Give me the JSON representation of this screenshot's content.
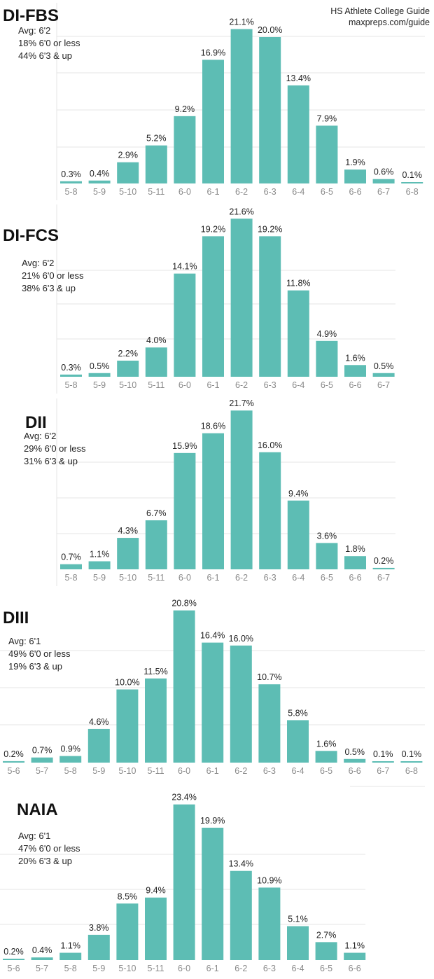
{
  "source": {
    "line1": "HS Athlete College Guide",
    "line2": "maxpreps.com/guide"
  },
  "colors": {
    "bar": "#5dbdb4",
    "grid": "#e4e4e4",
    "tick": "#8a8a8a"
  },
  "chart_data": [
    {
      "type": "bar",
      "title": "DI-FBS",
      "subtitle": [
        "Avg: 6'2",
        "18% 6'0 or less",
        "44% 6'3 & up"
      ],
      "categories": [
        "5-8",
        "5-9",
        "5-10",
        "5-11",
        "6-0",
        "6-1",
        "6-2",
        "6-3",
        "6-4",
        "6-5",
        "6-6",
        "6-7",
        "6-8"
      ],
      "values": [
        0.3,
        0.4,
        2.9,
        5.2,
        9.2,
        16.9,
        21.1,
        20.0,
        13.4,
        7.9,
        1.9,
        0.6,
        0.1
      ],
      "labels": [
        "0.3%",
        "0.4%",
        "2.9%",
        "5.2%",
        "9.2%",
        "16.9%",
        "21.1%",
        "20.0%",
        "13.4%",
        "7.9%",
        "1.9%",
        "0.6%",
        "0.1%"
      ],
      "xlabel": "",
      "ylabel": "",
      "grid": true,
      "legend": "none"
    },
    {
      "type": "bar",
      "title": "DI-FCS",
      "subtitle": [
        "Avg: 6'2",
        "21% 6'0 or less",
        "38% 6'3 & up"
      ],
      "categories": [
        "5-8",
        "5-9",
        "5-10",
        "5-11",
        "6-0",
        "6-1",
        "6-2",
        "6-3",
        "6-4",
        "6-5",
        "6-6",
        "6-7"
      ],
      "values": [
        0.3,
        0.5,
        2.2,
        4.0,
        14.1,
        19.2,
        21.6,
        19.2,
        11.8,
        4.9,
        1.6,
        0.5
      ],
      "labels": [
        "0.3%",
        "0.5%",
        "2.2%",
        "4.0%",
        "14.1%",
        "19.2%",
        "21.6%",
        "19.2%",
        "11.8%",
        "4.9%",
        "1.6%",
        "0.5%"
      ],
      "xlabel": "",
      "ylabel": "",
      "grid": true,
      "legend": "none"
    },
    {
      "type": "bar",
      "title": "DII",
      "subtitle": [
        "Avg: 6'2",
        "29% 6'0 or less",
        "31% 6'3 & up"
      ],
      "categories": [
        "5-8",
        "5-9",
        "5-10",
        "5-11",
        "6-0",
        "6-1",
        "6-2",
        "6-3",
        "6-4",
        "6-5",
        "6-6",
        "6-7"
      ],
      "values": [
        0.7,
        1.1,
        4.3,
        6.7,
        15.9,
        18.6,
        21.7,
        16.0,
        9.4,
        3.6,
        1.8,
        0.2
      ],
      "labels": [
        "0.7%",
        "1.1%",
        "4.3%",
        "6.7%",
        "15.9%",
        "18.6%",
        "21.7%",
        "16.0%",
        "9.4%",
        "3.6%",
        "1.8%",
        "0.2%"
      ],
      "xlabel": "",
      "ylabel": "",
      "grid": true,
      "legend": "none"
    },
    {
      "type": "bar",
      "title": "DIII",
      "subtitle": [
        "Avg: 6'1",
        "49% 6'0 or less",
        "19% 6'3 & up"
      ],
      "categories": [
        "5-6",
        "5-7",
        "5-8",
        "5-9",
        "5-10",
        "5-11",
        "6-0",
        "6-1",
        "6-2",
        "6-3",
        "6-4",
        "6-5",
        "6-6",
        "6-7",
        "6-8"
      ],
      "values": [
        0.2,
        0.7,
        0.9,
        4.6,
        10.0,
        11.5,
        20.8,
        16.4,
        16.0,
        10.7,
        5.8,
        1.6,
        0.5,
        0.1,
        0.1
      ],
      "labels": [
        "0.2%",
        "0.7%",
        "0.9%",
        "4.6%",
        "10.0%",
        "11.5%",
        "20.8%",
        "16.4%",
        "16.0%",
        "10.7%",
        "5.8%",
        "1.6%",
        "0.5%",
        "0.1%",
        "0.1%"
      ],
      "xlabel": "",
      "ylabel": "",
      "grid": true,
      "legend": "none"
    },
    {
      "type": "bar",
      "title": "NAIA",
      "subtitle": [
        "Avg: 6'1",
        "47% 6'0 or less",
        "20% 6'3 & up"
      ],
      "categories": [
        "5-6",
        "5-7",
        "5-8",
        "5-9",
        "5-10",
        "5-11",
        "6-0",
        "6-1",
        "6-2",
        "6-3",
        "6-4",
        "6-5",
        "6-6"
      ],
      "values": [
        0.2,
        0.4,
        1.1,
        3.8,
        8.5,
        9.4,
        23.4,
        19.9,
        13.4,
        10.9,
        5.1,
        2.7,
        1.1
      ],
      "labels": [
        "0.2%",
        "0.4%",
        "1.1%",
        "3.8%",
        "8.5%",
        "9.4%",
        "23.4%",
        "19.9%",
        "13.4%",
        "10.9%",
        "5.1%",
        "2.7%",
        "1.1%"
      ],
      "xlabel": "",
      "ylabel": "",
      "grid": true,
      "legend": "none"
    }
  ]
}
